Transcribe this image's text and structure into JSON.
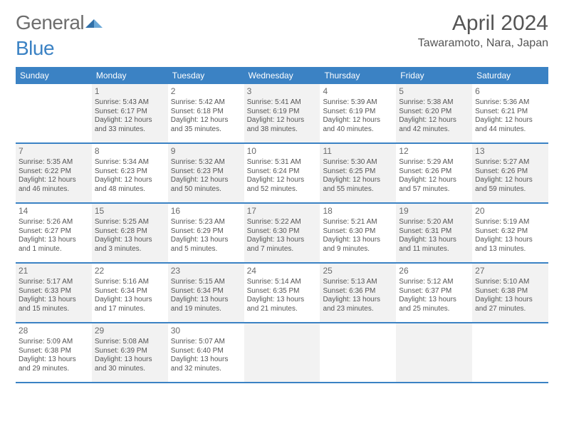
{
  "logo": {
    "part1": "General",
    "part2": "Blue"
  },
  "title": "April 2024",
  "location": "Tawaramoto, Nara, Japan",
  "colors": {
    "header_bg": "#3b82c4",
    "header_text": "#ffffff",
    "body_text": "#555555",
    "shaded_bg": "#f2f2f2",
    "page_bg": "#ffffff"
  },
  "typography": {
    "title_fontsize": 30,
    "location_fontsize": 16,
    "dayhead_fontsize": 12,
    "daynum_fontsize": 12,
    "body_fontsize": 10
  },
  "layout": {
    "columns": 7,
    "rows": 5,
    "cell_min_height": 82
  },
  "day_names": [
    "Sunday",
    "Monday",
    "Tuesday",
    "Wednesday",
    "Thursday",
    "Friday",
    "Saturday"
  ],
  "weeks": [
    [
      {
        "num": "",
        "shaded": false,
        "lines": [
          "",
          "",
          "",
          ""
        ]
      },
      {
        "num": "1",
        "shaded": true,
        "lines": [
          "Sunrise: 5:43 AM",
          "Sunset: 6:17 PM",
          "Daylight: 12 hours",
          "and 33 minutes."
        ]
      },
      {
        "num": "2",
        "shaded": false,
        "lines": [
          "Sunrise: 5:42 AM",
          "Sunset: 6:18 PM",
          "Daylight: 12 hours",
          "and 35 minutes."
        ]
      },
      {
        "num": "3",
        "shaded": true,
        "lines": [
          "Sunrise: 5:41 AM",
          "Sunset: 6:19 PM",
          "Daylight: 12 hours",
          "and 38 minutes."
        ]
      },
      {
        "num": "4",
        "shaded": false,
        "lines": [
          "Sunrise: 5:39 AM",
          "Sunset: 6:19 PM",
          "Daylight: 12 hours",
          "and 40 minutes."
        ]
      },
      {
        "num": "5",
        "shaded": true,
        "lines": [
          "Sunrise: 5:38 AM",
          "Sunset: 6:20 PM",
          "Daylight: 12 hours",
          "and 42 minutes."
        ]
      },
      {
        "num": "6",
        "shaded": false,
        "lines": [
          "Sunrise: 5:36 AM",
          "Sunset: 6:21 PM",
          "Daylight: 12 hours",
          "and 44 minutes."
        ]
      }
    ],
    [
      {
        "num": "7",
        "shaded": true,
        "lines": [
          "Sunrise: 5:35 AM",
          "Sunset: 6:22 PM",
          "Daylight: 12 hours",
          "and 46 minutes."
        ]
      },
      {
        "num": "8",
        "shaded": false,
        "lines": [
          "Sunrise: 5:34 AM",
          "Sunset: 6:23 PM",
          "Daylight: 12 hours",
          "and 48 minutes."
        ]
      },
      {
        "num": "9",
        "shaded": true,
        "lines": [
          "Sunrise: 5:32 AM",
          "Sunset: 6:23 PM",
          "Daylight: 12 hours",
          "and 50 minutes."
        ]
      },
      {
        "num": "10",
        "shaded": false,
        "lines": [
          "Sunrise: 5:31 AM",
          "Sunset: 6:24 PM",
          "Daylight: 12 hours",
          "and 52 minutes."
        ]
      },
      {
        "num": "11",
        "shaded": true,
        "lines": [
          "Sunrise: 5:30 AM",
          "Sunset: 6:25 PM",
          "Daylight: 12 hours",
          "and 55 minutes."
        ]
      },
      {
        "num": "12",
        "shaded": false,
        "lines": [
          "Sunrise: 5:29 AM",
          "Sunset: 6:26 PM",
          "Daylight: 12 hours",
          "and 57 minutes."
        ]
      },
      {
        "num": "13",
        "shaded": true,
        "lines": [
          "Sunrise: 5:27 AM",
          "Sunset: 6:26 PM",
          "Daylight: 12 hours",
          "and 59 minutes."
        ]
      }
    ],
    [
      {
        "num": "14",
        "shaded": false,
        "lines": [
          "Sunrise: 5:26 AM",
          "Sunset: 6:27 PM",
          "Daylight: 13 hours",
          "and 1 minute."
        ]
      },
      {
        "num": "15",
        "shaded": true,
        "lines": [
          "Sunrise: 5:25 AM",
          "Sunset: 6:28 PM",
          "Daylight: 13 hours",
          "and 3 minutes."
        ]
      },
      {
        "num": "16",
        "shaded": false,
        "lines": [
          "Sunrise: 5:23 AM",
          "Sunset: 6:29 PM",
          "Daylight: 13 hours",
          "and 5 minutes."
        ]
      },
      {
        "num": "17",
        "shaded": true,
        "lines": [
          "Sunrise: 5:22 AM",
          "Sunset: 6:30 PM",
          "Daylight: 13 hours",
          "and 7 minutes."
        ]
      },
      {
        "num": "18",
        "shaded": false,
        "lines": [
          "Sunrise: 5:21 AM",
          "Sunset: 6:30 PM",
          "Daylight: 13 hours",
          "and 9 minutes."
        ]
      },
      {
        "num": "19",
        "shaded": true,
        "lines": [
          "Sunrise: 5:20 AM",
          "Sunset: 6:31 PM",
          "Daylight: 13 hours",
          "and 11 minutes."
        ]
      },
      {
        "num": "20",
        "shaded": false,
        "lines": [
          "Sunrise: 5:19 AM",
          "Sunset: 6:32 PM",
          "Daylight: 13 hours",
          "and 13 minutes."
        ]
      }
    ],
    [
      {
        "num": "21",
        "shaded": true,
        "lines": [
          "Sunrise: 5:17 AM",
          "Sunset: 6:33 PM",
          "Daylight: 13 hours",
          "and 15 minutes."
        ]
      },
      {
        "num": "22",
        "shaded": false,
        "lines": [
          "Sunrise: 5:16 AM",
          "Sunset: 6:34 PM",
          "Daylight: 13 hours",
          "and 17 minutes."
        ]
      },
      {
        "num": "23",
        "shaded": true,
        "lines": [
          "Sunrise: 5:15 AM",
          "Sunset: 6:34 PM",
          "Daylight: 13 hours",
          "and 19 minutes."
        ]
      },
      {
        "num": "24",
        "shaded": false,
        "lines": [
          "Sunrise: 5:14 AM",
          "Sunset: 6:35 PM",
          "Daylight: 13 hours",
          "and 21 minutes."
        ]
      },
      {
        "num": "25",
        "shaded": true,
        "lines": [
          "Sunrise: 5:13 AM",
          "Sunset: 6:36 PM",
          "Daylight: 13 hours",
          "and 23 minutes."
        ]
      },
      {
        "num": "26",
        "shaded": false,
        "lines": [
          "Sunrise: 5:12 AM",
          "Sunset: 6:37 PM",
          "Daylight: 13 hours",
          "and 25 minutes."
        ]
      },
      {
        "num": "27",
        "shaded": true,
        "lines": [
          "Sunrise: 5:10 AM",
          "Sunset: 6:38 PM",
          "Daylight: 13 hours",
          "and 27 minutes."
        ]
      }
    ],
    [
      {
        "num": "28",
        "shaded": false,
        "lines": [
          "Sunrise: 5:09 AM",
          "Sunset: 6:38 PM",
          "Daylight: 13 hours",
          "and 29 minutes."
        ]
      },
      {
        "num": "29",
        "shaded": true,
        "lines": [
          "Sunrise: 5:08 AM",
          "Sunset: 6:39 PM",
          "Daylight: 13 hours",
          "and 30 minutes."
        ]
      },
      {
        "num": "30",
        "shaded": false,
        "lines": [
          "Sunrise: 5:07 AM",
          "Sunset: 6:40 PM",
          "Daylight: 13 hours",
          "and 32 minutes."
        ]
      },
      {
        "num": "",
        "shaded": true,
        "lines": [
          "",
          "",
          "",
          ""
        ]
      },
      {
        "num": "",
        "shaded": false,
        "lines": [
          "",
          "",
          "",
          ""
        ]
      },
      {
        "num": "",
        "shaded": true,
        "lines": [
          "",
          "",
          "",
          ""
        ]
      },
      {
        "num": "",
        "shaded": false,
        "lines": [
          "",
          "",
          "",
          ""
        ]
      }
    ]
  ]
}
